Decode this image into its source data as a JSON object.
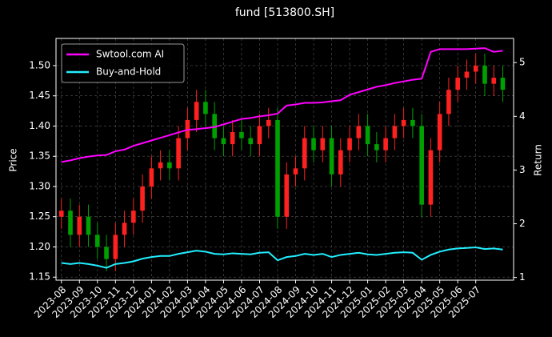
{
  "chart_data": {
    "type": "candlestick",
    "title": "fund [513800.SH]",
    "y_label": "Price",
    "y2_label": "Return",
    "xlim": [
      -0.6,
      50.2
    ],
    "xticks": [
      {
        "value": 0,
        "label": "2023-08"
      },
      {
        "value": 2,
        "label": "2023-09"
      },
      {
        "value": 4,
        "label": "2023-10"
      },
      {
        "value": 6,
        "label": "2023-11"
      },
      {
        "value": 8,
        "label": "2023-12"
      },
      {
        "value": 10,
        "label": "2024-01"
      },
      {
        "value": 12,
        "label": "2024-02"
      },
      {
        "value": 14,
        "label": "2024-03"
      },
      {
        "value": 16,
        "label": "2024-04"
      },
      {
        "value": 18,
        "label": "2024-05"
      },
      {
        "value": 20,
        "label": "2024-06"
      },
      {
        "value": 22,
        "label": "2024-07"
      },
      {
        "value": 24,
        "label": "2024-08"
      },
      {
        "value": 26,
        "label": "2024-09"
      },
      {
        "value": 28,
        "label": "2024-10"
      },
      {
        "value": 30,
        "label": "2024-11"
      },
      {
        "value": 32,
        "label": "2024-12"
      },
      {
        "value": 34,
        "label": "2025-01"
      },
      {
        "value": 36,
        "label": "2025-02"
      },
      {
        "value": 38,
        "label": "2025-03"
      },
      {
        "value": 40,
        "label": "2025-04"
      },
      {
        "value": 42,
        "label": "2025-05"
      },
      {
        "value": 44,
        "label": "2025-06"
      },
      {
        "value": 46,
        "label": "2025-07"
      }
    ],
    "ylim": [
      1.145,
      1.545
    ],
    "yticks": [
      1.15,
      {
        "value": 1.2,
        "label": "1.20"
      },
      1.25,
      {
        "value": 1.3,
        "label": "1.30"
      },
      1.35,
      {
        "value": 1.4,
        "label": "1.40"
      },
      1.45,
      {
        "value": 1.5,
        "label": "1.50"
      }
    ],
    "y2lim": [
      0.95,
      5.45
    ],
    "y2ticks": [
      1,
      2,
      3,
      4,
      5
    ],
    "grid": true,
    "legend": "upper left",
    "up_color": "#ff2020",
    "down_color": "#00a000",
    "candles": {
      "open": [
        1.25,
        1.26,
        1.22,
        1.25,
        1.22,
        1.2,
        1.18,
        1.22,
        1.24,
        1.26,
        1.3,
        1.33,
        1.34,
        1.33,
        1.38,
        1.41,
        1.44,
        1.42,
        1.38,
        1.37,
        1.39,
        1.38,
        1.37,
        1.4,
        1.41,
        1.25,
        1.32,
        1.33,
        1.38,
        1.36,
        1.38,
        1.32,
        1.36,
        1.38,
        1.4,
        1.37,
        1.36,
        1.38,
        1.4,
        1.41,
        1.4,
        1.27,
        1.36,
        1.42,
        1.46,
        1.48,
        1.49,
        1.5,
        1.47,
        1.48
      ],
      "high": [
        1.28,
        1.28,
        1.27,
        1.27,
        1.24,
        1.22,
        1.24,
        1.26,
        1.28,
        1.32,
        1.35,
        1.36,
        1.36,
        1.4,
        1.43,
        1.46,
        1.46,
        1.44,
        1.4,
        1.41,
        1.41,
        1.4,
        1.42,
        1.43,
        1.43,
        1.34,
        1.35,
        1.4,
        1.4,
        1.4,
        1.4,
        1.38,
        1.4,
        1.42,
        1.42,
        1.39,
        1.4,
        1.42,
        1.43,
        1.43,
        1.42,
        1.38,
        1.44,
        1.48,
        1.5,
        1.51,
        1.52,
        1.52,
        1.5,
        1.5
      ],
      "low": [
        1.23,
        1.2,
        1.2,
        1.2,
        1.18,
        1.16,
        1.16,
        1.2,
        1.22,
        1.24,
        1.28,
        1.31,
        1.31,
        1.31,
        1.36,
        1.39,
        1.4,
        1.36,
        1.35,
        1.35,
        1.36,
        1.35,
        1.35,
        1.38,
        1.23,
        1.23,
        1.3,
        1.31,
        1.34,
        1.34,
        1.3,
        1.3,
        1.34,
        1.36,
        1.35,
        1.34,
        1.34,
        1.36,
        1.38,
        1.38,
        1.25,
        1.25,
        1.34,
        1.4,
        1.44,
        1.46,
        1.47,
        1.45,
        1.45,
        1.44
      ],
      "close": [
        1.26,
        1.22,
        1.25,
        1.22,
        1.2,
        1.18,
        1.22,
        1.24,
        1.26,
        1.3,
        1.33,
        1.34,
        1.33,
        1.38,
        1.41,
        1.44,
        1.42,
        1.38,
        1.37,
        1.39,
        1.38,
        1.37,
        1.4,
        1.41,
        1.25,
        1.32,
        1.33,
        1.38,
        1.36,
        1.38,
        1.32,
        1.36,
        1.38,
        1.4,
        1.37,
        1.36,
        1.38,
        1.4,
        1.41,
        1.4,
        1.27,
        1.36,
        1.42,
        1.46,
        1.48,
        1.49,
        1.5,
        1.47,
        1.48,
        1.46
      ]
    },
    "series": [
      {
        "name": "Swtool.com AI",
        "color": "#ff00ff",
        "axis": "y2",
        "values": [
          3.15,
          3.18,
          3.22,
          3.25,
          3.27,
          3.28,
          3.35,
          3.38,
          3.45,
          3.5,
          3.55,
          3.6,
          3.65,
          3.7,
          3.75,
          3.76,
          3.78,
          3.8,
          3.85,
          3.9,
          3.95,
          3.97,
          4.0,
          4.02,
          4.05,
          4.2,
          4.22,
          4.25,
          4.25,
          4.26,
          4.28,
          4.3,
          4.4,
          4.45,
          4.5,
          4.55,
          4.58,
          4.62,
          4.65,
          4.68,
          4.7,
          5.2,
          5.25,
          5.25,
          5.25,
          5.25,
          5.26,
          5.27,
          5.2,
          5.22
        ]
      },
      {
        "name": "Buy-and-Hold",
        "color": "#22eeff",
        "axis": "y2",
        "values": [
          1.27,
          1.25,
          1.27,
          1.25,
          1.22,
          1.18,
          1.25,
          1.27,
          1.3,
          1.35,
          1.38,
          1.4,
          1.4,
          1.44,
          1.47,
          1.5,
          1.48,
          1.44,
          1.43,
          1.45,
          1.44,
          1.43,
          1.46,
          1.47,
          1.32,
          1.38,
          1.4,
          1.44,
          1.42,
          1.44,
          1.38,
          1.42,
          1.44,
          1.46,
          1.43,
          1.42,
          1.44,
          1.46,
          1.47,
          1.46,
          1.33,
          1.42,
          1.48,
          1.52,
          1.54,
          1.55,
          1.56,
          1.53,
          1.54,
          1.52
        ]
      }
    ]
  }
}
